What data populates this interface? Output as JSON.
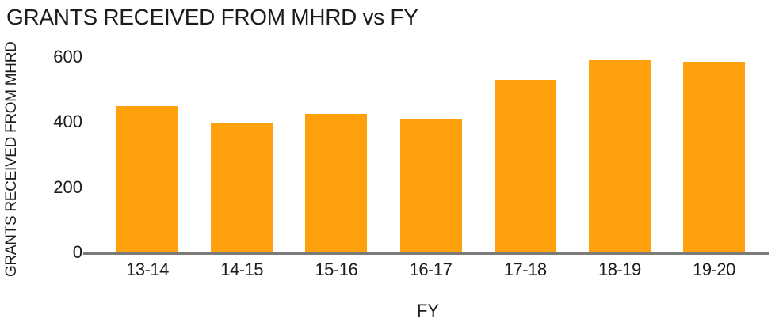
{
  "chart_data": {
    "type": "bar",
    "title": "GRANTS RECEIVED FROM MHRD vs FY",
    "xlabel": "FY",
    "ylabel": "GRANTS RECEIVED FROM MHRD",
    "categories": [
      "13-14",
      "14-15",
      "15-16",
      "16-17",
      "17-18",
      "18-19",
      "19-20"
    ],
    "values": [
      450,
      395,
      425,
      410,
      530,
      590,
      585
    ],
    "ylim": [
      0,
      600
    ],
    "yticks": [
      0,
      200,
      400,
      600
    ],
    "grid": false,
    "legend": "none",
    "bar_color": "#FFA10D",
    "axis_color": "#7A7A7A",
    "text_color": "#1C1C1C"
  }
}
